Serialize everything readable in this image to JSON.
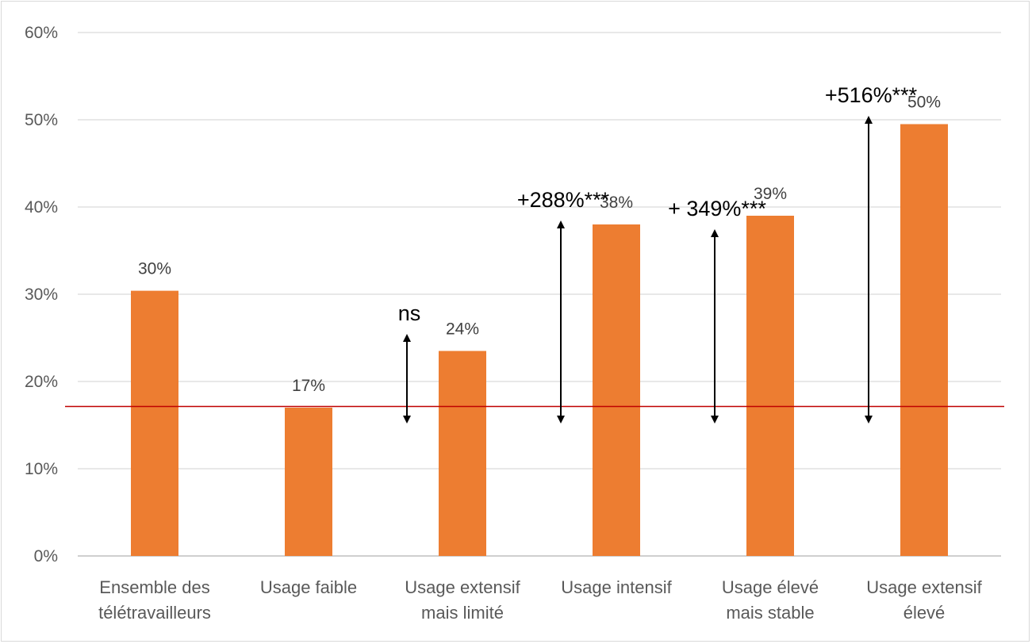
{
  "chart_data": {
    "type": "bar",
    "title": "",
    "xlabel": "",
    "ylabel": "",
    "ylim": [
      0,
      60
    ],
    "yticks": [
      0,
      10,
      20,
      30,
      40,
      50,
      60
    ],
    "ytick_labels": [
      "0%",
      "10%",
      "20%",
      "30%",
      "40%",
      "50%",
      "60%"
    ],
    "grid": true,
    "categories": [
      [
        "Ensemble des",
        "télétravailleurs"
      ],
      [
        "Usage faible"
      ],
      [
        "Usage extensif",
        "mais limité"
      ],
      [
        "Usage intensif"
      ],
      [
        "Usage élevé",
        "mais stable"
      ],
      [
        "Usage extensif",
        "élevé"
      ]
    ],
    "values": [
      30.4,
      17,
      23.5,
      38,
      39,
      49.5
    ],
    "data_labels": [
      "30%",
      "17%",
      "24%",
      "38%",
      "39%",
      "50%"
    ],
    "bar_color": "#ed7d31",
    "reference_line": {
      "value": 17,
      "color": "#c00000"
    },
    "annotations": [
      {
        "category_index": 2,
        "text": "ns",
        "from": 17,
        "to": 25
      },
      {
        "category_index": 3,
        "text": "+288%***",
        "from": 17,
        "to": 38
      },
      {
        "category_index": 4,
        "text": "+ 349%***",
        "from": 17,
        "to": 37
      },
      {
        "category_index": 5,
        "text": "+516%***",
        "from": 17,
        "to": 50
      }
    ]
  }
}
